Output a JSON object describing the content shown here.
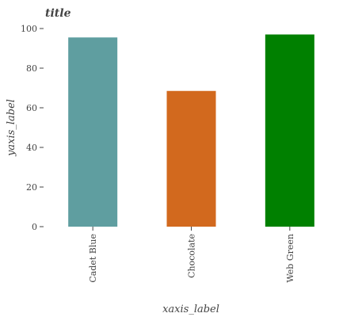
{
  "chart_data": {
    "type": "bar",
    "title": "title",
    "xlabel": "xaxis_label",
    "ylabel": "yaxis_label",
    "categories": [
      "Cadet Blue",
      "Chocolate",
      "Web Green"
    ],
    "values": [
      95.5,
      68.5,
      97
    ],
    "colors": [
      "#5f9ea0",
      "#d2691e",
      "#008000"
    ],
    "ylim": [
      0,
      100
    ],
    "yticks": [
      0,
      20,
      40,
      60,
      80,
      100
    ],
    "grid": false,
    "legend": "none"
  }
}
